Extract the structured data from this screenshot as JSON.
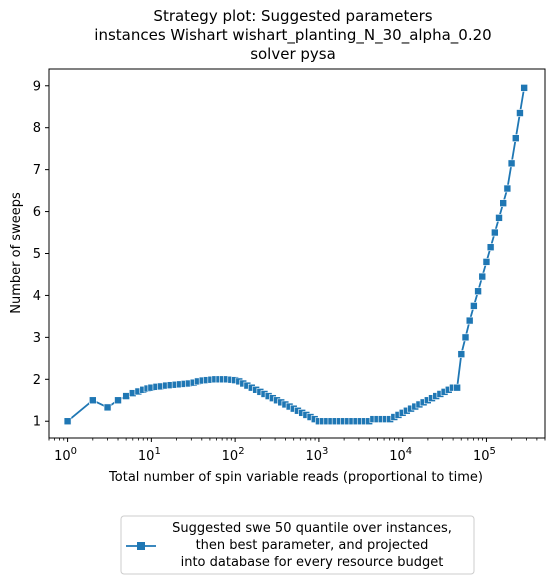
{
  "chart_data": {
    "type": "line",
    "title_lines": [
      "Strategy plot: Suggested parameters",
      "instances Wishart wishart_planting_N_30_alpha_0.20",
      "solver pysa"
    ],
    "xlabel": "Total number of spin variable reads (proportional to time)",
    "ylabel": "Number of sweeps",
    "xscale": "log",
    "xlim": [
      0.6,
      500000
    ],
    "ylim": [
      0.6,
      9.4
    ],
    "yticks": [
      1,
      2,
      3,
      4,
      5,
      6,
      7,
      8,
      9
    ],
    "xticks": [
      {
        "value": 1,
        "base": "10",
        "exp": "0"
      },
      {
        "value": 10,
        "base": "10",
        "exp": "1"
      },
      {
        "value": 100,
        "base": "10",
        "exp": "2"
      },
      {
        "value": 1000,
        "base": "10",
        "exp": "3"
      },
      {
        "value": 10000,
        "base": "10",
        "exp": "4"
      },
      {
        "value": 100000,
        "base": "10",
        "exp": "5"
      }
    ],
    "grid": false,
    "legend_position": "below-center",
    "series": [
      {
        "name_lines": [
          "Suggested swe 50 quantile over instances,",
          "then best parameter, and projected",
          "into database for every resource budget"
        ],
        "color": "#1f77b4",
        "marker": "square",
        "x": [
          1,
          2,
          3,
          4,
          5,
          6,
          7,
          8,
          9,
          10,
          11.5,
          13,
          15,
          17,
          19.5,
          22,
          25,
          28,
          32,
          36,
          41,
          46,
          52,
          58,
          65,
          72,
          80,
          90,
          100,
          112,
          125,
          140,
          158,
          178,
          200,
          224,
          251,
          282,
          316,
          355,
          398,
          447,
          501,
          562,
          631,
          708,
          794,
          891,
          1000,
          1122,
          1259,
          1413,
          1585,
          1778,
          1995,
          2239,
          2512,
          2818,
          3162,
          3548,
          3981,
          4467,
          5012,
          5623,
          6310,
          7079,
          7943,
          8913,
          10000,
          11220,
          12590,
          14130,
          15850,
          17780,
          19950,
          22390,
          25120,
          28180,
          31620,
          35480,
          39810,
          44670,
          50120,
          56230,
          63100,
          70790,
          79430,
          89130,
          100000,
          112200,
          125900,
          141300,
          158500,
          177800,
          199500,
          223900,
          251200,
          281800
        ],
        "y": [
          1.0,
          1.5,
          1.33,
          1.5,
          1.6,
          1.67,
          1.71,
          1.75,
          1.78,
          1.8,
          1.82,
          1.83,
          1.85,
          1.86,
          1.87,
          1.88,
          1.89,
          1.9,
          1.92,
          1.95,
          1.97,
          1.98,
          1.99,
          2.0,
          2.0,
          2.0,
          2.0,
          1.99,
          1.98,
          1.95,
          1.9,
          1.85,
          1.8,
          1.75,
          1.7,
          1.65,
          1.6,
          1.55,
          1.5,
          1.45,
          1.4,
          1.35,
          1.3,
          1.25,
          1.2,
          1.15,
          1.1,
          1.05,
          1.0,
          1.0,
          1.0,
          1.0,
          1.0,
          1.0,
          1.0,
          1.0,
          1.0,
          1.0,
          1.0,
          1.0,
          1.0,
          1.05,
          1.05,
          1.05,
          1.05,
          1.05,
          1.1,
          1.15,
          1.2,
          1.25,
          1.3,
          1.35,
          1.4,
          1.45,
          1.5,
          1.55,
          1.6,
          1.65,
          1.7,
          1.75,
          1.8,
          1.8,
          2.6,
          3.0,
          3.4,
          3.75,
          4.1,
          4.45,
          4.8,
          5.15,
          5.5,
          5.85,
          6.2,
          6.55,
          7.15,
          7.75,
          8.35,
          8.95
        ]
      }
    ]
  }
}
